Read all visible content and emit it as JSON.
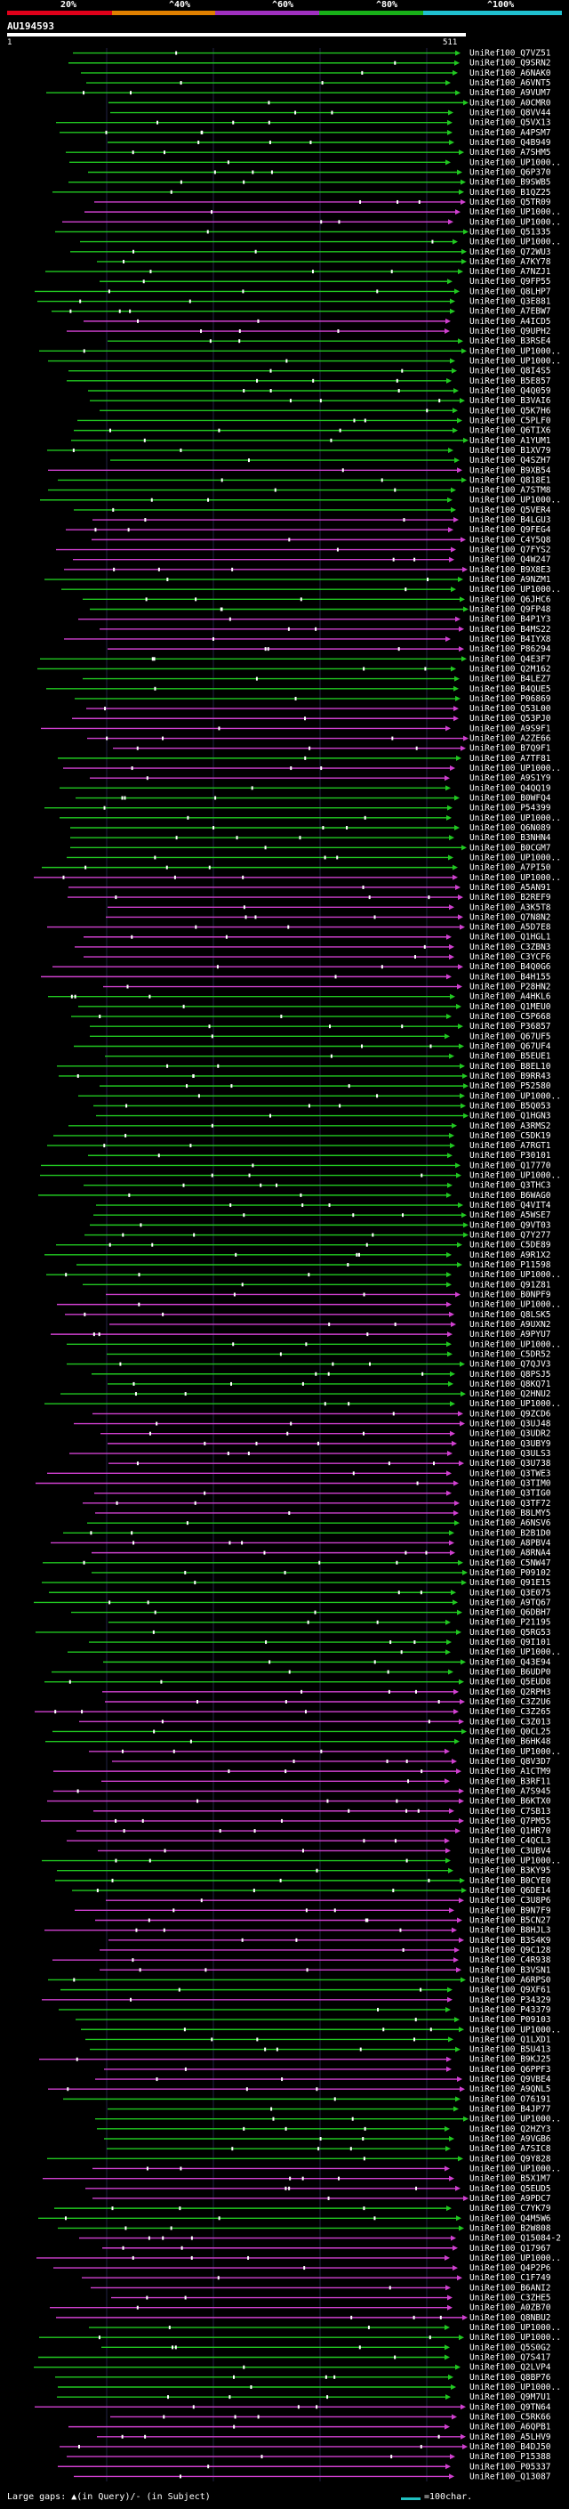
{
  "query_id": "AU194593",
  "scale": {
    "labels": [
      "20%",
      "^40%",
      "^60%",
      "^80%",
      "^100%"
    ],
    "colors": [
      "#e0001a",
      "#e08000",
      "#a030c0",
      "#18b018",
      "#20c0d0"
    ]
  },
  "query_start": "1",
  "query_end": "511",
  "colors": {
    "green": "#21c821",
    "magenta": "#d040d0",
    "line": "#8080ff"
  },
  "legend": {
    "large_gaps": "Large gaps: ▲(in Query)/- (in Subject)",
    "scale_note": "=100char."
  },
  "hits": [
    {
      "label": "UniRef100_Q7VZ51",
      "color": "green"
    },
    {
      "label": "UniRef100_Q9SRN2",
      "color": "green"
    },
    {
      "label": "UniRef100_A6NAK0",
      "color": "green"
    },
    {
      "label": "UniRef100_A6VNT5",
      "color": "green"
    },
    {
      "label": "UniRef100_A9VUM7",
      "color": "green"
    },
    {
      "label": "UniRef100_A0CMR0",
      "color": "green"
    },
    {
      "label": "UniRef100_Q8VV44",
      "color": "green"
    },
    {
      "label": "UniRef100_Q5VX13",
      "color": "green"
    },
    {
      "label": "UniRef100_A4PSM7",
      "color": "green"
    },
    {
      "label": "UniRef100_Q4B949",
      "color": "green"
    },
    {
      "label": "UniRef100_A7SHM5",
      "color": "green"
    },
    {
      "label": "UniRef100_UP1000..",
      "color": "green"
    },
    {
      "label": "UniRef100_Q6P370",
      "color": "green"
    },
    {
      "label": "UniRef100_B9SWB5",
      "color": "green"
    },
    {
      "label": "UniRef100_B1QZ25",
      "color": "green"
    },
    {
      "label": "UniRef100_Q5TR09",
      "color": "magenta"
    },
    {
      "label": "UniRef100_UP1000..",
      "color": "magenta"
    },
    {
      "label": "UniRef100_UP1000..",
      "color": "magenta"
    },
    {
      "label": "UniRef100_Q51335",
      "color": "green"
    },
    {
      "label": "UniRef100_UP1000..",
      "color": "green"
    },
    {
      "label": "UniRef100_Q72WU3",
      "color": "green"
    },
    {
      "label": "UniRef100_A7KY78",
      "color": "green"
    },
    {
      "label": "UniRef100_A7NZJ1",
      "color": "green"
    },
    {
      "label": "UniRef100_Q9FP55",
      "color": "green"
    },
    {
      "label": "UniRef100_Q8LHP7",
      "color": "green"
    },
    {
      "label": "UniRef100_Q3E881",
      "color": "green"
    },
    {
      "label": "UniRef100_A7EBW7",
      "color": "green"
    },
    {
      "label": "UniRef100_A4ICD5",
      "color": "magenta"
    },
    {
      "label": "UniRef100_Q9UPH2",
      "color": "magenta"
    },
    {
      "label": "UniRef100_B3RSE4",
      "color": "green"
    },
    {
      "label": "UniRef100_UP1000..",
      "color": "green"
    },
    {
      "label": "UniRef100_UP1000..",
      "color": "green"
    },
    {
      "label": "UniRef100_Q8I4S5",
      "color": "green"
    },
    {
      "label": "UniRef100_B5E857",
      "color": "green"
    },
    {
      "label": "UniRef100_Q4Q059",
      "color": "green"
    },
    {
      "label": "UniRef100_B3VAI6",
      "color": "green"
    },
    {
      "label": "UniRef100_Q5K7H6",
      "color": "green"
    },
    {
      "label": "UniRef100_C5PLF0",
      "color": "green"
    },
    {
      "label": "UniRef100_Q6TIX6",
      "color": "green"
    },
    {
      "label": "UniRef100_A1YUM1",
      "color": "green"
    },
    {
      "label": "UniRef100_B1XV79",
      "color": "green"
    },
    {
      "label": "UniRef100_Q4SZH7",
      "color": "green"
    },
    {
      "label": "UniRef100_B9XB54",
      "color": "magenta"
    },
    {
      "label": "UniRef100_Q818E1",
      "color": "green"
    },
    {
      "label": "UniRef100_A7STM8",
      "color": "green"
    },
    {
      "label": "UniRef100_UP1000..",
      "color": "green"
    },
    {
      "label": "UniRef100_Q5VER4",
      "color": "green"
    },
    {
      "label": "UniRef100_B4LGU3",
      "color": "magenta"
    },
    {
      "label": "UniRef100_Q9FEG4",
      "color": "magenta"
    },
    {
      "label": "UniRef100_C4Y5Q8",
      "color": "magenta"
    },
    {
      "label": "UniRef100_Q7FYS2",
      "color": "magenta"
    },
    {
      "label": "UniRef100_Q4W247",
      "color": "magenta"
    },
    {
      "label": "UniRef100_B9X8E3",
      "color": "magenta"
    },
    {
      "label": "UniRef100_A9NZM1",
      "color": "green"
    },
    {
      "label": "UniRef100_UP1000..",
      "color": "green"
    },
    {
      "label": "UniRef100_Q6JHC6",
      "color": "green"
    },
    {
      "label": "UniRef100_Q9FP48",
      "color": "green"
    },
    {
      "label": "UniRef100_B4P1Y3",
      "color": "magenta"
    },
    {
      "label": "UniRef100_B4MS22",
      "color": "magenta"
    },
    {
      "label": "UniRef100_B4IYX8",
      "color": "magenta"
    },
    {
      "label": "UniRef100_P86294",
      "color": "magenta"
    },
    {
      "label": "UniRef100_Q4E3F7",
      "color": "green"
    },
    {
      "label": "UniRef100_Q2M162",
      "color": "green"
    },
    {
      "label": "UniRef100_B4LEZ7",
      "color": "green"
    },
    {
      "label": "UniRef100_B4QUE5",
      "color": "green"
    },
    {
      "label": "UniRef100_P06869",
      "color": "green"
    },
    {
      "label": "UniRef100_Q53L00",
      "color": "magenta"
    },
    {
      "label": "UniRef100_Q53PJ0",
      "color": "magenta"
    },
    {
      "label": "UniRef100_A9S9F1",
      "color": "magenta"
    },
    {
      "label": "UniRef100_A2ZE66",
      "color": "magenta"
    },
    {
      "label": "UniRef100_B7Q9F1",
      "color": "magenta"
    },
    {
      "label": "UniRef100_A7TF81",
      "color": "green"
    },
    {
      "label": "UniRef100_UP1000..",
      "color": "magenta"
    },
    {
      "label": "UniRef100_A9S1Y9",
      "color": "magenta"
    },
    {
      "label": "UniRef100_Q4QQ19",
      "color": "green"
    },
    {
      "label": "UniRef100_B0WFQ4",
      "color": "green"
    },
    {
      "label": "UniRef100_P54399",
      "color": "green"
    },
    {
      "label": "UniRef100_UP1000..",
      "color": "green"
    },
    {
      "label": "UniRef100_Q6N089",
      "color": "green"
    },
    {
      "label": "UniRef100_B3NHN4",
      "color": "green"
    },
    {
      "label": "UniRef100_B0CGM7",
      "color": "green"
    },
    {
      "label": "UniRef100_UP1000..",
      "color": "green"
    },
    {
      "label": "UniRef100_A7PI50",
      "color": "green"
    },
    {
      "label": "UniRef100_UP1000..",
      "color": "magenta"
    },
    {
      "label": "UniRef100_A5AN91",
      "color": "magenta"
    },
    {
      "label": "UniRef100_B2REF9",
      "color": "magenta"
    },
    {
      "label": "UniRef100_A3K5T8",
      "color": "magenta"
    },
    {
      "label": "UniRef100_Q7N8N2",
      "color": "magenta"
    },
    {
      "label": "UniRef100_A5D7E8",
      "color": "magenta"
    },
    {
      "label": "UniRef100_Q1HGL1",
      "color": "magenta"
    },
    {
      "label": "UniRef100_C3ZBN3",
      "color": "magenta"
    },
    {
      "label": "UniRef100_C3YCF6",
      "color": "magenta"
    },
    {
      "label": "UniRef100_B4Q0G6",
      "color": "magenta"
    },
    {
      "label": "UniRef100_B4H155",
      "color": "magenta"
    },
    {
      "label": "UniRef100_P28HN2",
      "color": "magenta"
    },
    {
      "label": "UniRef100_A4HKL6",
      "color": "green"
    },
    {
      "label": "UniRef100_Q1MEU0",
      "color": "green"
    },
    {
      "label": "UniRef100_C5P668",
      "color": "green"
    },
    {
      "label": "UniRef100_P36857",
      "color": "green"
    },
    {
      "label": "UniRef100_Q67UF5",
      "color": "green"
    },
    {
      "label": "UniRef100_Q67UF4",
      "color": "green"
    },
    {
      "label": "UniRef100_B5EUE1",
      "color": "green"
    },
    {
      "label": "UniRef100_B8EL10",
      "color": "green"
    },
    {
      "label": "UniRef100_B9RR43",
      "color": "green"
    },
    {
      "label": "UniRef100_P52580",
      "color": "green"
    },
    {
      "label": "UniRef100_UP1000..",
      "color": "green"
    },
    {
      "label": "UniRef100_B5Q053",
      "color": "green"
    },
    {
      "label": "UniRef100_Q1HGN3",
      "color": "green"
    },
    {
      "label": "UniRef100_A3RMS2",
      "color": "green"
    },
    {
      "label": "UniRef100_C5DK19",
      "color": "green"
    },
    {
      "label": "UniRef100_A7RGT1",
      "color": "green"
    },
    {
      "label": "UniRef100_P30101",
      "color": "green"
    },
    {
      "label": "UniRef100_Q17770",
      "color": "green"
    },
    {
      "label": "UniRef100_UP1000..",
      "color": "green"
    },
    {
      "label": "UniRef100_Q3THC3",
      "color": "green"
    },
    {
      "label": "UniRef100_B6WAG0",
      "color": "green"
    },
    {
      "label": "UniRef100_Q4VIT4",
      "color": "green"
    },
    {
      "label": "UniRef100_A5WSE7",
      "color": "green"
    },
    {
      "label": "UniRef100_Q9VT03",
      "color": "green"
    },
    {
      "label": "UniRef100_Q7Y277",
      "color": "green"
    },
    {
      "label": "UniRef100_C5DE89",
      "color": "green"
    },
    {
      "label": "UniRef100_A9R1X2",
      "color": "green"
    },
    {
      "label": "UniRef100_P11598",
      "color": "green"
    },
    {
      "label": "UniRef100_UP1000..",
      "color": "green"
    },
    {
      "label": "UniRef100_Q91Z81",
      "color": "green"
    },
    {
      "label": "UniRef100_B0NPF9",
      "color": "magenta"
    },
    {
      "label": "UniRef100_UP1000..",
      "color": "magenta"
    },
    {
      "label": "UniRef100_Q8LSK5",
      "color": "magenta"
    },
    {
      "label": "UniRef100_A9UXN2",
      "color": "magenta"
    },
    {
      "label": "UniRef100_A9PYU7",
      "color": "magenta"
    },
    {
      "label": "UniRef100_UP1000..",
      "color": "green"
    },
    {
      "label": "UniRef100_C5DR52",
      "color": "green"
    },
    {
      "label": "UniRef100_Q7QJV3",
      "color": "green"
    },
    {
      "label": "UniRef100_Q8PSJ5",
      "color": "green"
    },
    {
      "label": "UniRef100_Q8KQ71",
      "color": "green"
    },
    {
      "label": "UniRef100_Q2HNU2",
      "color": "green"
    },
    {
      "label": "UniRef100_UP1000..",
      "color": "green"
    },
    {
      "label": "UniRef100_Q9ZCD6",
      "color": "magenta"
    },
    {
      "label": "UniRef100_Q3UJ48",
      "color": "magenta"
    },
    {
      "label": "UniRef100_Q3UDR2",
      "color": "magenta"
    },
    {
      "label": "UniRef100_Q3UBY9",
      "color": "magenta"
    },
    {
      "label": "UniRef100_Q3ULS3",
      "color": "magenta"
    },
    {
      "label": "UniRef100_Q3U738",
      "color": "magenta"
    },
    {
      "label": "UniRef100_Q3TWE3",
      "color": "magenta"
    },
    {
      "label": "UniRef100_Q3TIM0",
      "color": "magenta"
    },
    {
      "label": "UniRef100_Q3TIG0",
      "color": "magenta"
    },
    {
      "label": "UniRef100_Q3TF72",
      "color": "magenta"
    },
    {
      "label": "UniRef100_B8LMY5",
      "color": "magenta"
    },
    {
      "label": "UniRef100_A6NSV6",
      "color": "green"
    },
    {
      "label": "UniRef100_B2B1D0",
      "color": "green"
    },
    {
      "label": "UniRef100_A8PBV4",
      "color": "magenta"
    },
    {
      "label": "UniRef100_A8RNA4",
      "color": "magenta"
    },
    {
      "label": "UniRef100_C5NW47",
      "color": "green"
    },
    {
      "label": "UniRef100_P09102",
      "color": "green"
    },
    {
      "label": "UniRef100_Q91E15",
      "color": "green"
    },
    {
      "label": "UniRef100_Q3E075",
      "color": "green"
    },
    {
      "label": "UniRef100_A9TQ67",
      "color": "green"
    },
    {
      "label": "UniRef100_Q6DBH7",
      "color": "green"
    },
    {
      "label": "UniRef100_P21195",
      "color": "green"
    },
    {
      "label": "UniRef100_Q5RG53",
      "color": "green"
    },
    {
      "label": "UniRef100_Q9I101",
      "color": "green"
    },
    {
      "label": "UniRef100_UP1000..",
      "color": "green"
    },
    {
      "label": "UniRef100_Q43E94",
      "color": "green"
    },
    {
      "label": "UniRef100_B6UDP0",
      "color": "green"
    },
    {
      "label": "UniRef100_Q5EUD8",
      "color": "green"
    },
    {
      "label": "UniRef100_Q2RPH3",
      "color": "magenta"
    },
    {
      "label": "UniRef100_C3Z2U6",
      "color": "magenta"
    },
    {
      "label": "UniRef100_C3Z265",
      "color": "magenta"
    },
    {
      "label": "UniRef100_C3Z013",
      "color": "magenta"
    },
    {
      "label": "UniRef100_Q0CL25",
      "color": "green"
    },
    {
      "label": "UniRef100_B6HK48",
      "color": "green"
    },
    {
      "label": "UniRef100_UP1000..",
      "color": "magenta"
    },
    {
      "label": "UniRef100_Q8V3D7",
      "color": "magenta"
    },
    {
      "label": "UniRef100_A1CTM9",
      "color": "magenta"
    },
    {
      "label": "UniRef100_B3RF11",
      "color": "magenta"
    },
    {
      "label": "UniRef100_A7S945",
      "color": "magenta"
    },
    {
      "label": "UniRef100_B6KTX0",
      "color": "magenta"
    },
    {
      "label": "UniRef100_C7SB13",
      "color": "magenta"
    },
    {
      "label": "UniRef100_Q7PM55",
      "color": "magenta"
    },
    {
      "label": "UniRef100_Q1HR70",
      "color": "magenta"
    },
    {
      "label": "UniRef100_C4QCL3",
      "color": "magenta"
    },
    {
      "label": "UniRef100_C3UBV4",
      "color": "magenta"
    },
    {
      "label": "UniRef100_UP1000..",
      "color": "green"
    },
    {
      "label": "UniRef100_B3KY95",
      "color": "green"
    },
    {
      "label": "UniRef100_B0CYE0",
      "color": "green"
    },
    {
      "label": "UniRef100_Q6DE14",
      "color": "green"
    },
    {
      "label": "UniRef100_C3U8P6",
      "color": "magenta"
    },
    {
      "label": "UniRef100_B9N7F9",
      "color": "magenta"
    },
    {
      "label": "UniRef100_B5CN27",
      "color": "magenta"
    },
    {
      "label": "UniRef100_B8HJL3",
      "color": "magenta"
    },
    {
      "label": "UniRef100_B3S4K9",
      "color": "magenta"
    },
    {
      "label": "UniRef100_Q9C128",
      "color": "magenta"
    },
    {
      "label": "UniRef100_C4R938",
      "color": "magenta"
    },
    {
      "label": "UniRef100_B3VSN1",
      "color": "magenta"
    },
    {
      "label": "UniRef100_A6RPS0",
      "color": "green"
    },
    {
      "label": "UniRef100_Q9XF61",
      "color": "green"
    },
    {
      "label": "UniRef100_P34329",
      "color": "magenta"
    },
    {
      "label": "UniRef100_P43379",
      "color": "green"
    },
    {
      "label": "UniRef100_P09103",
      "color": "green"
    },
    {
      "label": "UniRef100_UP1000..",
      "color": "green"
    },
    {
      "label": "UniRef100_Q1LXD1",
      "color": "green"
    },
    {
      "label": "UniRef100_B5U413",
      "color": "green"
    },
    {
      "label": "UniRef100_B9KJ25",
      "color": "magenta"
    },
    {
      "label": "UniRef100_Q6PPF3",
      "color": "magenta"
    },
    {
      "label": "UniRef100_Q9VBE4",
      "color": "magenta"
    },
    {
      "label": "UniRef100_A9QNL5",
      "color": "magenta"
    },
    {
      "label": "UniRef100_O76191",
      "color": "green"
    },
    {
      "label": "UniRef100_B4JP77",
      "color": "green"
    },
    {
      "label": "UniRef100_UP1000..",
      "color": "green"
    },
    {
      "label": "UniRef100_Q2HZY3",
      "color": "green"
    },
    {
      "label": "UniRef100_A9VGB6",
      "color": "green"
    },
    {
      "label": "UniRef100_A7SIC8",
      "color": "green"
    },
    {
      "label": "UniRef100_Q9Y828",
      "color": "green"
    },
    {
      "label": "UniRef100_UP1000..",
      "color": "magenta"
    },
    {
      "label": "UniRef100_B5X1M7",
      "color": "magenta"
    },
    {
      "label": "UniRef100_Q5EUD5",
      "color": "magenta"
    },
    {
      "label": "UniRef100_A9PDC7",
      "color": "magenta"
    },
    {
      "label": "UniRef100_C7YK79",
      "color": "green"
    },
    {
      "label": "UniRef100_Q4M5W6",
      "color": "green"
    },
    {
      "label": "UniRef100_B2W808",
      "color": "green"
    },
    {
      "label": "UniRef100_Q15084-2",
      "color": "magenta"
    },
    {
      "label": "UniRef100_Q17967",
      "color": "magenta"
    },
    {
      "label": "UniRef100_UP1000..",
      "color": "magenta"
    },
    {
      "label": "UniRef100_Q4P2P6",
      "color": "magenta"
    },
    {
      "label": "UniRef100_C1F749",
      "color": "magenta"
    },
    {
      "label": "UniRef100_B6ANI2",
      "color": "magenta"
    },
    {
      "label": "UniRef100_C3ZHE5",
      "color": "magenta"
    },
    {
      "label": "UniRef100_A0ZB70",
      "color": "magenta"
    },
    {
      "label": "UniRef100_Q8NBU2",
      "color": "magenta"
    },
    {
      "label": "UniRef100_UP1000..",
      "color": "green"
    },
    {
      "label": "UniRef100_UP1000..",
      "color": "green"
    },
    {
      "label": "UniRef100_Q5S0G2",
      "color": "green"
    },
    {
      "label": "UniRef100_Q7S417",
      "color": "green"
    },
    {
      "label": "UniRef100_Q2LVP4",
      "color": "green"
    },
    {
      "label": "UniRef100_Q8BP76",
      "color": "green"
    },
    {
      "label": "UniRef100_UP1000..",
      "color": "green"
    },
    {
      "label": "UniRef100_Q9M7U1",
      "color": "green"
    },
    {
      "label": "UniRef100_Q9TN64",
      "color": "magenta"
    },
    {
      "label": "UniRef100_C5RK66",
      "color": "magenta"
    },
    {
      "label": "UniRef100_A6QPB1",
      "color": "magenta"
    },
    {
      "label": "UniRef100_A5LHV9",
      "color": "magenta"
    },
    {
      "label": "UniRef100_B4DJ50",
      "color": "magenta"
    },
    {
      "label": "UniRef100_P15388",
      "color": "magenta"
    },
    {
      "label": "UniRef100_P05337",
      "color": "magenta"
    },
    {
      "label": "UniRef100_Q13087",
      "color": "magenta"
    }
  ]
}
